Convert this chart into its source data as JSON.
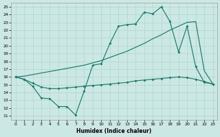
{
  "xlabel": "Humidex (Indice chaleur)",
  "bg_color": "#cce8e4",
  "grid_color": "#b0d4ce",
  "line_color": "#1a7a6e",
  "xlim": [
    -0.5,
    23.5
  ],
  "ylim": [
    10.5,
    25.5
  ],
  "xticks": [
    0,
    1,
    2,
    3,
    4,
    5,
    6,
    7,
    8,
    9,
    10,
    11,
    12,
    13,
    14,
    15,
    16,
    17,
    18,
    19,
    20,
    21,
    22,
    23
  ],
  "yticks": [
    11,
    12,
    13,
    14,
    15,
    16,
    17,
    18,
    19,
    20,
    21,
    22,
    23,
    24,
    25
  ],
  "line1_x": [
    0,
    1,
    2,
    3,
    4,
    5,
    6,
    7,
    8,
    9,
    10,
    11,
    12,
    13,
    14,
    15,
    16,
    17,
    18,
    19,
    20,
    21,
    22,
    23
  ],
  "line1_y": [
    16.0,
    15.7,
    14.8,
    13.3,
    13.2,
    12.2,
    12.2,
    11.1,
    14.2,
    17.5,
    17.7,
    20.3,
    22.5,
    22.7,
    22.8,
    24.3,
    24.1,
    25.0,
    23.1,
    19.2,
    22.5,
    17.3,
    15.3,
    15.1
  ],
  "line2_x": [
    0,
    1,
    2,
    3,
    4,
    5,
    6,
    7,
    8,
    9,
    10,
    11,
    12,
    13,
    14,
    15,
    16,
    17,
    18,
    19,
    20,
    21,
    22,
    23
  ],
  "line2_y": [
    16.0,
    16.1,
    16.3,
    16.5,
    16.7,
    16.9,
    17.1,
    17.3,
    17.5,
    17.8,
    18.1,
    18.5,
    18.9,
    19.3,
    19.8,
    20.3,
    20.9,
    21.4,
    22.0,
    22.5,
    23.0,
    23.1,
    16.8,
    15.1
  ],
  "line3_x": [
    0,
    1,
    2,
    3,
    4,
    5,
    6,
    7,
    8,
    9,
    10,
    11,
    12,
    13,
    14,
    15,
    16,
    17,
    18,
    19,
    20,
    21,
    22,
    23
  ],
  "line3_y": [
    16.0,
    15.7,
    15.2,
    14.7,
    14.5,
    14.5,
    14.6,
    14.7,
    14.8,
    14.9,
    15.0,
    15.1,
    15.2,
    15.3,
    15.5,
    15.6,
    15.7,
    15.8,
    15.9,
    16.0,
    15.9,
    15.7,
    15.4,
    15.1
  ]
}
